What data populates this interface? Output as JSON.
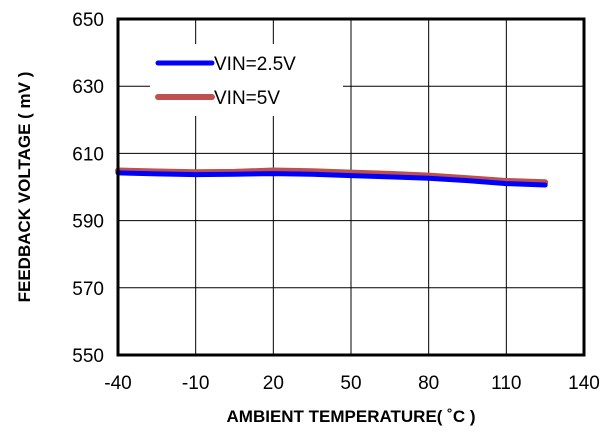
{
  "chart_data": {
    "type": "line",
    "title": "",
    "xlabel": "AMBIENT  TEMPERATURE(  ˚C )",
    "ylabel": "FEEDBACK  VOLTAGE ( mV )",
    "xlim": [
      -40,
      140
    ],
    "ylim": [
      550,
      650
    ],
    "xticks": [
      -40,
      -10,
      20,
      50,
      80,
      110,
      140
    ],
    "yticks": [
      550,
      570,
      590,
      610,
      630,
      650
    ],
    "grid": true,
    "legend_position": "top-left",
    "series": [
      {
        "name": "VIN=2.5V",
        "color": "#0000ff",
        "x": [
          -40,
          -25,
          -10,
          5,
          20,
          35,
          50,
          65,
          80,
          95,
          110,
          125
        ],
        "y": [
          604.2,
          603.9,
          603.7,
          603.8,
          604.0,
          603.8,
          603.4,
          603.0,
          602.6,
          601.9,
          601.0,
          600.6
        ]
      },
      {
        "name": "VIN=5V",
        "color": "#c0504d",
        "x": [
          -40,
          -25,
          -10,
          5,
          20,
          35,
          50,
          65,
          80,
          95,
          110,
          125
        ],
        "y": [
          604.9,
          604.6,
          604.4,
          604.5,
          604.9,
          604.7,
          604.3,
          603.9,
          603.4,
          602.6,
          601.8,
          601.4
        ]
      }
    ]
  }
}
